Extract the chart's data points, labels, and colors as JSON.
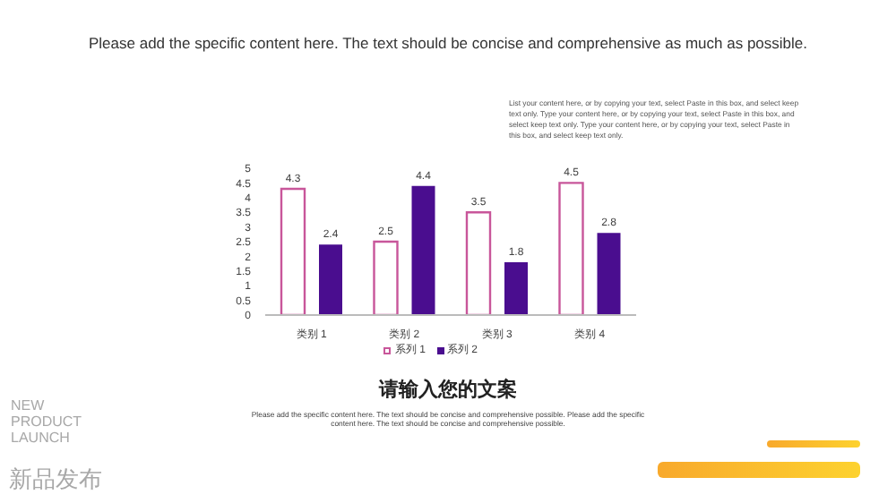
{
  "chart_data": {
    "type": "bar",
    "title": "Please add the specific content here. The text should be concise and comprehensive as much as possible.",
    "subtitle": "请输入您的文案",
    "annotations": [
      "List your content here, or by copying your text, select Paste in this box, and select keep text only. Type your content here, or by copying your text, select Paste in this box, and select keep text only. Type your content here, or by copying your text, select Paste in this box, and select keep text only.",
      "Please add the specific content here. The text should be concise and comprehensive possible. Please add the specific content here. The text should be concise and comprehensive possible.",
      "NEW PRODUCT LAUNCH",
      "新品发布"
    ],
    "categories": [
      "类别 1",
      "类别 2",
      "类别 3",
      "类别 4"
    ],
    "series": [
      {
        "name": "系列 1",
        "color": "#c8569a",
        "values": [
          4.3,
          2.5,
          3.5,
          4.5
        ]
      },
      {
        "name": "系列 2",
        "color": "#4a0d8f",
        "values": [
          2.4,
          4.4,
          1.8,
          2.8
        ]
      }
    ],
    "ylim": [
      0,
      5
    ],
    "yticks": [
      0,
      0.5,
      1,
      1.5,
      2,
      2.5,
      3,
      3.5,
      4,
      4.5,
      5
    ],
    "grid": false,
    "legend": "bottom",
    "data_labels": true
  }
}
